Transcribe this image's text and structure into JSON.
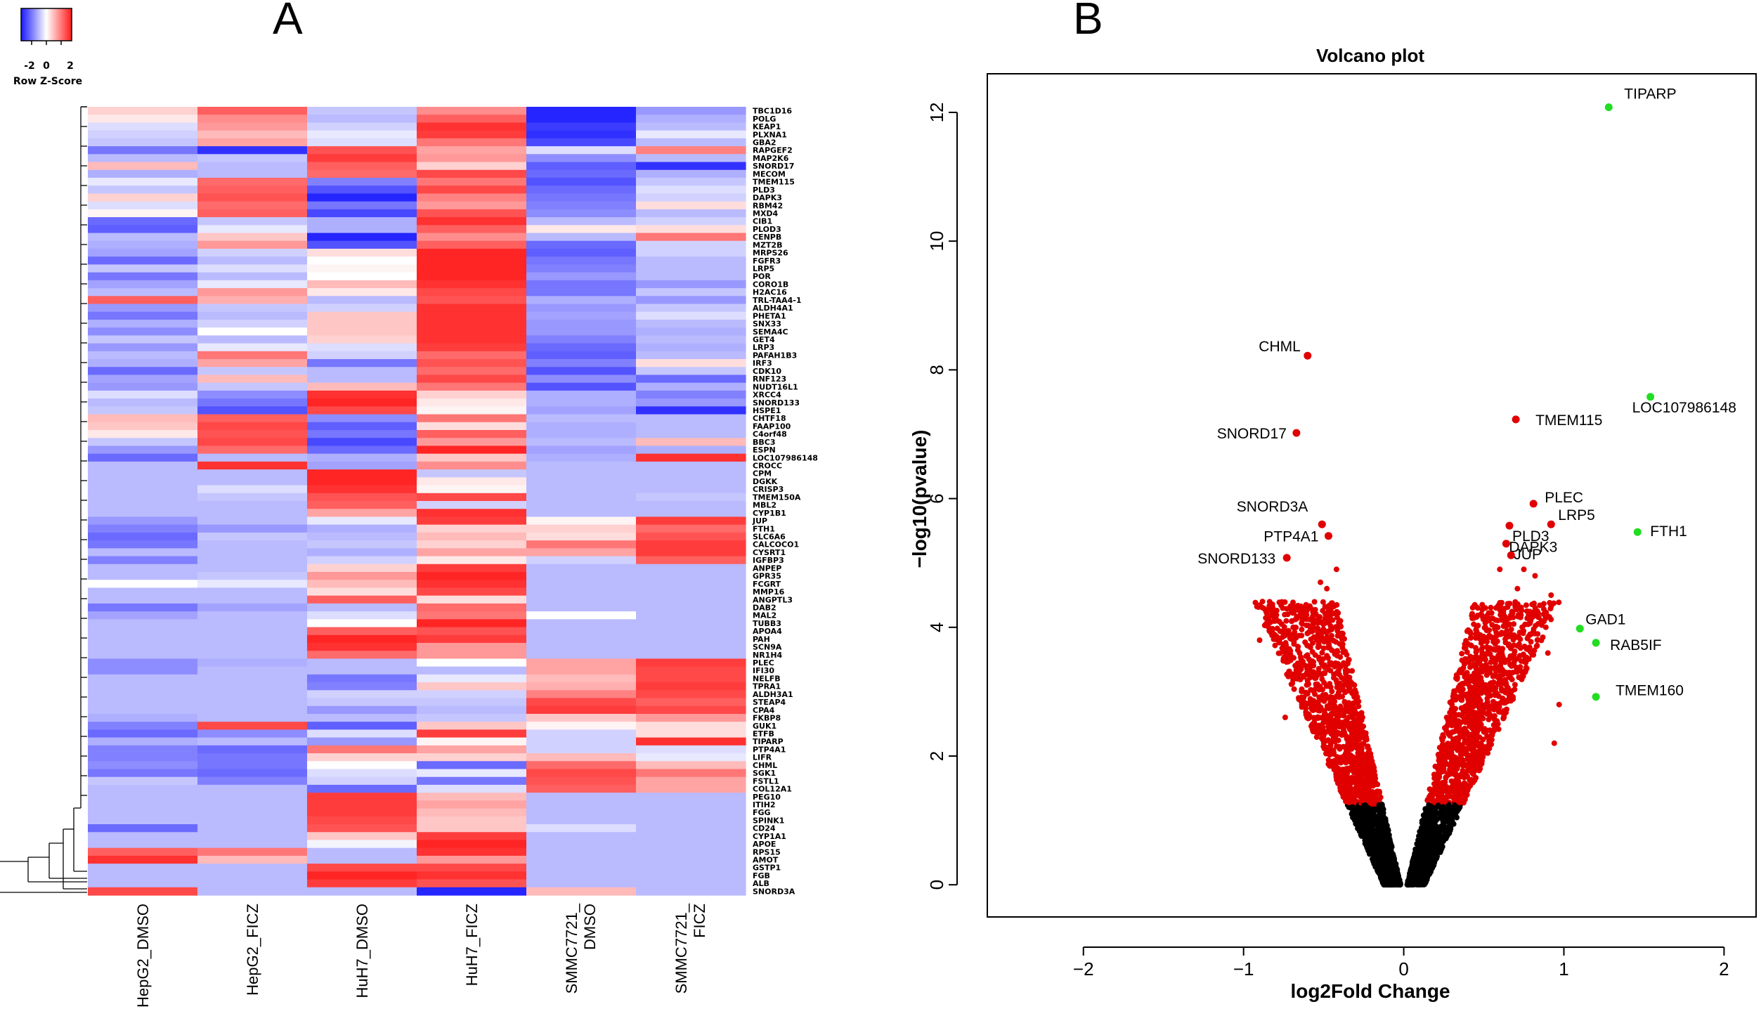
{
  "chart_data": [
    {
      "type": "heatmap",
      "panel_label": "A",
      "color_key": {
        "title": "Row Z-Score",
        "tick_labels": [
          "-2",
          "0",
          "2"
        ],
        "low_color": "#1a1aff",
        "mid_color": "#ffffff",
        "high_color": "#ff1a1a"
      },
      "columns": [
        "HepG2_DMSO",
        "HepG2_FICZ",
        "HuH7_DMSO",
        "HuH7_FICZ",
        "SMMC7721_ DMSO",
        "SMMC7721_ FICZ"
      ],
      "rows": [
        "TBC1D16",
        "POLG",
        "KEAP1",
        "PLXNA1",
        "GBA2",
        "RAPGEF2",
        "MAP2K6",
        "SNORD17",
        "MECOM",
        "TMEM115",
        "PLD3",
        "DAPK3",
        "RBM42",
        "MXD4",
        "CIB1",
        "PLOD3",
        "CENPB",
        "MZT2B",
        "MRPS26",
        "FGFR3",
        "LRP5",
        "POR",
        "CORO1B",
        "H2AC16",
        "TRL-TAA4-1",
        "ALDH4A1",
        "PHETA1",
        "SNX33",
        "SEMA4C",
        "GET4",
        "LRP3",
        "PAFAH1B3",
        "IRF3",
        "CDK10",
        "RNF123",
        "NUDT16L1",
        "XRCC4",
        "SNORD133",
        "HSPE1",
        "CHTF18",
        "FAAP100",
        "C4orf48",
        "BBC3",
        "ESPN",
        "LOC107986148",
        "CROCC",
        "CPM",
        "DGKK",
        "CRISP3",
        "TMEM150A",
        "MBL2",
        "CYP1B1",
        "JUP",
        "FTH1",
        "SLC6A6",
        "CALCOCO1",
        "CYSRT1",
        "IGFBP3",
        "ANPEP",
        "GPR35",
        "FCGRT",
        "MMP16",
        "ANGPTL3",
        "DAB2",
        "MAL2",
        "TUBB3",
        "APOA4",
        "PAH",
        "SCN9A",
        "NR1H4",
        "PLEC",
        "IFI30",
        "NELFB",
        "TPRA1",
        "ALDH3A1",
        "STEAP4",
        "CPA4",
        "FKBP8",
        "GUK1",
        "ETFB",
        "TIPARP",
        "PTP4A1",
        "LIFR",
        "CHML",
        "SGK1",
        "FSTL1",
        "COL12A1",
        "PEG10",
        "ITIH2",
        "FGG",
        "SPINK1",
        "CD24",
        "CYP1A1",
        "APOE",
        "RPS15",
        "AMOT",
        "GSTP1",
        "FGB",
        "ALB",
        "SNORD3A"
      ],
      "values": [
        [
          0.4,
          1.4,
          -0.5,
          1.0,
          -1.9,
          -0.9
        ],
        [
          0.2,
          1.0,
          -0.6,
          1.4,
          -1.9,
          -0.7
        ],
        [
          -0.3,
          0.9,
          -0.4,
          1.8,
          -1.7,
          -0.6
        ],
        [
          -0.4,
          0.6,
          -0.2,
          1.7,
          -1.8,
          -0.2
        ],
        [
          -0.5,
          0.8,
          -0.3,
          1.2,
          -1.6,
          -0.6
        ],
        [
          -1.2,
          -1.8,
          1.5,
          0.8,
          -0.3,
          1.1
        ],
        [
          -0.6,
          -0.5,
          1.7,
          0.9,
          -1.0,
          -0.6
        ],
        [
          0.6,
          -0.6,
          1.4,
          0.4,
          -1.4,
          -1.8
        ],
        [
          -0.7,
          -0.6,
          1.3,
          1.6,
          -1.3,
          -0.7
        ],
        [
          -0.2,
          1.3,
          -1.1,
          1.2,
          -1.5,
          -0.5
        ],
        [
          -0.5,
          1.4,
          -1.5,
          1.6,
          -1.3,
          -0.3
        ],
        [
          0.4,
          1.5,
          -1.9,
          1.1,
          -1.2,
          -0.4
        ],
        [
          -0.3,
          1.3,
          -1.2,
          0.9,
          -1.1,
          0.3
        ],
        [
          0.1,
          1.4,
          -1.6,
          1.5,
          -1.0,
          -0.6
        ],
        [
          -1.3,
          -0.5,
          -0.7,
          1.8,
          -0.6,
          -0.4
        ],
        [
          -1.4,
          -0.2,
          -0.7,
          1.4,
          0.2,
          0.3
        ],
        [
          -0.6,
          0.5,
          -1.9,
          1.0,
          -0.6,
          1.2
        ],
        [
          -0.7,
          0.9,
          -1.5,
          1.4,
          -1.3,
          -0.4
        ],
        [
          -0.8,
          -0.4,
          0.3,
          1.9,
          -1.4,
          -0.4
        ],
        [
          -1.3,
          -0.6,
          0.0,
          1.9,
          -1.2,
          -0.6
        ],
        [
          -0.5,
          -0.3,
          0.1,
          1.9,
          -1.1,
          -0.6
        ],
        [
          -1.2,
          -0.6,
          0.0,
          1.9,
          -0.9,
          -0.6
        ],
        [
          -0.8,
          -0.2,
          0.6,
          1.8,
          -1.2,
          -0.9
        ],
        [
          -0.6,
          0.9,
          0.2,
          1.6,
          -1.2,
          -0.5
        ],
        [
          1.4,
          0.7,
          -0.6,
          1.5,
          -0.7,
          -0.9
        ],
        [
          -0.9,
          -0.5,
          -0.4,
          1.8,
          -0.9,
          -0.5
        ],
        [
          -1.2,
          -0.6,
          0.5,
          1.8,
          -0.8,
          -0.3
        ],
        [
          -0.7,
          -0.4,
          0.5,
          1.8,
          -0.9,
          -0.6
        ],
        [
          -1.0,
          0.0,
          0.5,
          1.8,
          -0.9,
          -0.7
        ],
        [
          -0.5,
          -0.6,
          0.4,
          1.8,
          -1.1,
          -0.6
        ],
        [
          -0.9,
          -0.2,
          -0.3,
          1.7,
          -1.3,
          -0.7
        ],
        [
          -0.6,
          1.2,
          -0.4,
          1.3,
          -1.4,
          -0.6
        ],
        [
          -0.7,
          0.8,
          -1.2,
          1.5,
          -1.1,
          0.3
        ],
        [
          -1.3,
          -0.5,
          -0.6,
          1.3,
          -1.5,
          -0.5
        ],
        [
          -0.8,
          0.6,
          -0.6,
          1.6,
          -1.0,
          -1.3
        ],
        [
          -0.9,
          -0.5,
          0.6,
          1.2,
          -1.5,
          -0.7
        ],
        [
          -0.3,
          -1.0,
          1.8,
          0.4,
          -0.7,
          -1.1
        ],
        [
          -0.6,
          -1.2,
          1.9,
          0.2,
          -0.7,
          -0.9
        ],
        [
          -0.5,
          -1.5,
          1.6,
          0.1,
          -0.8,
          -1.8
        ],
        [
          0.6,
          1.4,
          -1.0,
          1.2,
          -0.6,
          -0.6
        ],
        [
          0.5,
          1.6,
          -1.4,
          0.3,
          -0.7,
          -0.6
        ],
        [
          0.2,
          1.5,
          -1.2,
          1.4,
          -0.7,
          -0.6
        ],
        [
          -0.5,
          1.6,
          -1.6,
          0.9,
          -0.6,
          0.6
        ],
        [
          -0.9,
          1.3,
          -1.3,
          1.9,
          -0.8,
          -0.7
        ],
        [
          -1.3,
          -0.6,
          -0.7,
          0.5,
          -0.7,
          1.8
        ],
        [
          -0.6,
          1.8,
          -0.8,
          1.0,
          -0.6,
          -0.6
        ],
        [
          -0.6,
          -0.6,
          1.9,
          -0.5,
          -0.6,
          -0.6
        ],
        [
          -0.6,
          -0.6,
          1.9,
          0.2,
          -0.6,
          -0.6
        ],
        [
          -0.6,
          -0.3,
          1.8,
          0.1,
          -0.6,
          -0.6
        ],
        [
          -0.6,
          -0.5,
          1.5,
          1.6,
          -0.6,
          -0.5
        ],
        [
          -0.6,
          -0.6,
          1.4,
          -0.4,
          -0.6,
          -0.6
        ],
        [
          -0.6,
          -0.6,
          0.8,
          1.8,
          -0.6,
          -0.6
        ],
        [
          -0.9,
          -0.6,
          -0.2,
          1.7,
          0.1,
          1.7
        ],
        [
          -1.1,
          -0.9,
          -0.7,
          0.4,
          0.4,
          1.3
        ],
        [
          -1.3,
          -0.5,
          -0.6,
          0.6,
          0.3,
          1.5
        ],
        [
          -1.2,
          -0.6,
          -0.5,
          0.4,
          1.2,
          1.7
        ],
        [
          -0.6,
          -0.6,
          -0.7,
          0.8,
          0.8,
          1.7
        ],
        [
          -1.1,
          -0.6,
          -0.4,
          0.2,
          -0.4,
          1.4
        ],
        [
          -0.6,
          -0.6,
          0.4,
          1.7,
          -0.6,
          -0.6
        ],
        [
          -0.6,
          -0.5,
          0.9,
          1.9,
          -0.6,
          -0.6
        ],
        [
          0.0,
          -0.2,
          0.6,
          1.8,
          -0.6,
          -0.6
        ],
        [
          -0.6,
          -0.6,
          0.3,
          1.6,
          -0.6,
          -0.6
        ],
        [
          -0.6,
          -0.6,
          1.4,
          0.3,
          -0.6,
          -0.6
        ],
        [
          -1.2,
          -0.8,
          -0.6,
          1.3,
          -0.6,
          -0.6
        ],
        [
          -0.8,
          -0.6,
          -0.3,
          1.2,
          0.0,
          -0.6
        ],
        [
          -0.6,
          -0.6,
          0.0,
          1.9,
          -0.6,
          -0.6
        ],
        [
          -0.6,
          -0.6,
          1.4,
          1.5,
          -0.6,
          -0.6
        ],
        [
          -0.6,
          -0.6,
          1.9,
          1.7,
          -0.6,
          -0.6
        ],
        [
          -0.6,
          -0.6,
          1.8,
          0.9,
          -0.6,
          -0.6
        ],
        [
          -0.6,
          -0.6,
          1.3,
          0.9,
          -0.6,
          -0.6
        ],
        [
          -1.0,
          -0.7,
          -0.6,
          0.0,
          0.8,
          1.7
        ],
        [
          -1.0,
          -0.6,
          -0.6,
          -0.6,
          0.8,
          1.6
        ],
        [
          -0.6,
          -0.6,
          -1.2,
          -0.2,
          0.6,
          1.6
        ],
        [
          -0.6,
          -0.6,
          -1.1,
          0.5,
          0.7,
          1.7
        ],
        [
          -0.6,
          -0.6,
          -0.4,
          -0.4,
          1.1,
          1.6
        ],
        [
          -0.6,
          -0.6,
          -0.5,
          -0.5,
          1.6,
          1.4
        ],
        [
          -0.6,
          -0.6,
          -0.9,
          -0.6,
          1.7,
          1.6
        ],
        [
          -0.7,
          -0.6,
          -0.6,
          -0.5,
          0.5,
          0.9
        ],
        [
          -1.1,
          1.6,
          -1.4,
          0.5,
          0.1,
          0.3
        ],
        [
          -1.3,
          -1.0,
          -0.3,
          1.7,
          -0.4,
          0.3
        ],
        [
          -0.7,
          -0.6,
          -0.9,
          0.1,
          -0.4,
          1.8
        ],
        [
          -1.1,
          -1.3,
          1.2,
          0.8,
          -0.4,
          -0.3
        ],
        [
          -1.1,
          -1.2,
          0.4,
          0.4,
          0.6,
          -0.2
        ],
        [
          -1.0,
          -1.2,
          0.0,
          -1.3,
          1.3,
          0.6
        ],
        [
          -1.2,
          -1.3,
          -0.3,
          -0.2,
          1.6,
          1.2
        ],
        [
          -0.5,
          -1.1,
          -0.4,
          -1.2,
          1.5,
          0.8
        ],
        [
          -0.6,
          -0.6,
          -1.3,
          -0.3,
          1.4,
          0.8
        ],
        [
          -0.6,
          -0.6,
          1.7,
          0.6,
          -0.6,
          -0.6
        ],
        [
          -0.6,
          -0.6,
          1.7,
          0.8,
          -0.6,
          -0.6
        ],
        [
          -0.6,
          -0.6,
          1.7,
          0.6,
          -0.6,
          -0.6
        ],
        [
          -0.6,
          -0.6,
          1.6,
          0.5,
          -0.6,
          -0.6
        ],
        [
          -1.3,
          -0.6,
          1.5,
          0.5,
          -0.3,
          -0.6
        ],
        [
          -0.6,
          -0.6,
          0.5,
          1.7,
          -0.6,
          -0.6
        ],
        [
          -0.6,
          -0.6,
          -0.1,
          1.9,
          -0.6,
          -0.6
        ],
        [
          1.4,
          1.2,
          -0.6,
          1.8,
          -0.6,
          -0.6
        ],
        [
          1.8,
          0.6,
          -0.6,
          0.9,
          -0.6,
          -0.6
        ],
        [
          -0.6,
          -0.6,
          1.6,
          1.6,
          -0.6,
          -0.6
        ],
        [
          -0.6,
          -0.6,
          1.9,
          1.8,
          -0.6,
          -0.6
        ],
        [
          -0.6,
          -0.6,
          1.7,
          1.5,
          -0.6,
          -0.6
        ],
        [
          1.6,
          -0.6,
          -0.6,
          -1.9,
          0.6,
          -0.6
        ]
      ]
    },
    {
      "type": "scatter",
      "panel_label": "B",
      "title": "Volcano plot",
      "xlabel": "log2Fold Change",
      "ylabel": "−log10(pvalue)",
      "xlim": [
        -2.6,
        2.2
      ],
      "ylim": [
        -0.5,
        12.6
      ],
      "x_ticks": [
        -2,
        -1,
        0,
        1,
        2
      ],
      "x_tick_labels": [
        "−2",
        "−1",
        "0",
        "1",
        "2"
      ],
      "y_ticks": [
        0,
        2,
        4,
        6,
        8,
        10,
        12
      ],
      "y_tick_labels": [
        "0",
        "2",
        "4",
        "6",
        "8",
        "10",
        "12"
      ],
      "significance_threshold_y": 1.25,
      "colors": {
        "not_significant": "#000000",
        "significant": "#e00000",
        "highlight": "#22dd22"
      },
      "labeled_points": [
        {
          "label": "TIPARP",
          "x": 1.28,
          "y": 12.08,
          "group": "highlight"
        },
        {
          "label": "LOC107986148",
          "x": 1.54,
          "y": 7.58,
          "group": "highlight"
        },
        {
          "label": "FTH1",
          "x": 1.46,
          "y": 5.48,
          "group": "highlight"
        },
        {
          "label": "GAD1",
          "x": 1.1,
          "y": 3.98,
          "group": "highlight"
        },
        {
          "label": "RAB5IF",
          "x": 1.2,
          "y": 3.76,
          "group": "highlight"
        },
        {
          "label": "TMEM160",
          "x": 1.2,
          "y": 2.92,
          "group": "highlight"
        },
        {
          "label": "CHML",
          "x": -0.6,
          "y": 8.22,
          "group": "significant"
        },
        {
          "label": "SNORD17",
          "x": -0.67,
          "y": 7.02,
          "group": "significant"
        },
        {
          "label": "TMEM115",
          "x": 0.7,
          "y": 7.23,
          "group": "significant"
        },
        {
          "label": "SNORD3A",
          "x": -0.51,
          "y": 5.6,
          "group": "significant"
        },
        {
          "label": "PTP4A1",
          "x": -0.47,
          "y": 5.42,
          "group": "significant"
        },
        {
          "label": "SNORD133",
          "x": -0.73,
          "y": 5.08,
          "group": "significant"
        },
        {
          "label": "PLEC",
          "x": 0.81,
          "y": 5.92,
          "group": "significant"
        },
        {
          "label": "PLD3",
          "x": 0.66,
          "y": 5.58,
          "group": "significant"
        },
        {
          "label": "LRP5",
          "x": 0.92,
          "y": 5.6,
          "group": "significant"
        },
        {
          "label": "DAPK3",
          "x": 0.64,
          "y": 5.3,
          "group": "significant"
        },
        {
          "label": "JUP",
          "x": 0.67,
          "y": 5.12,
          "group": "significant"
        }
      ]
    }
  ]
}
